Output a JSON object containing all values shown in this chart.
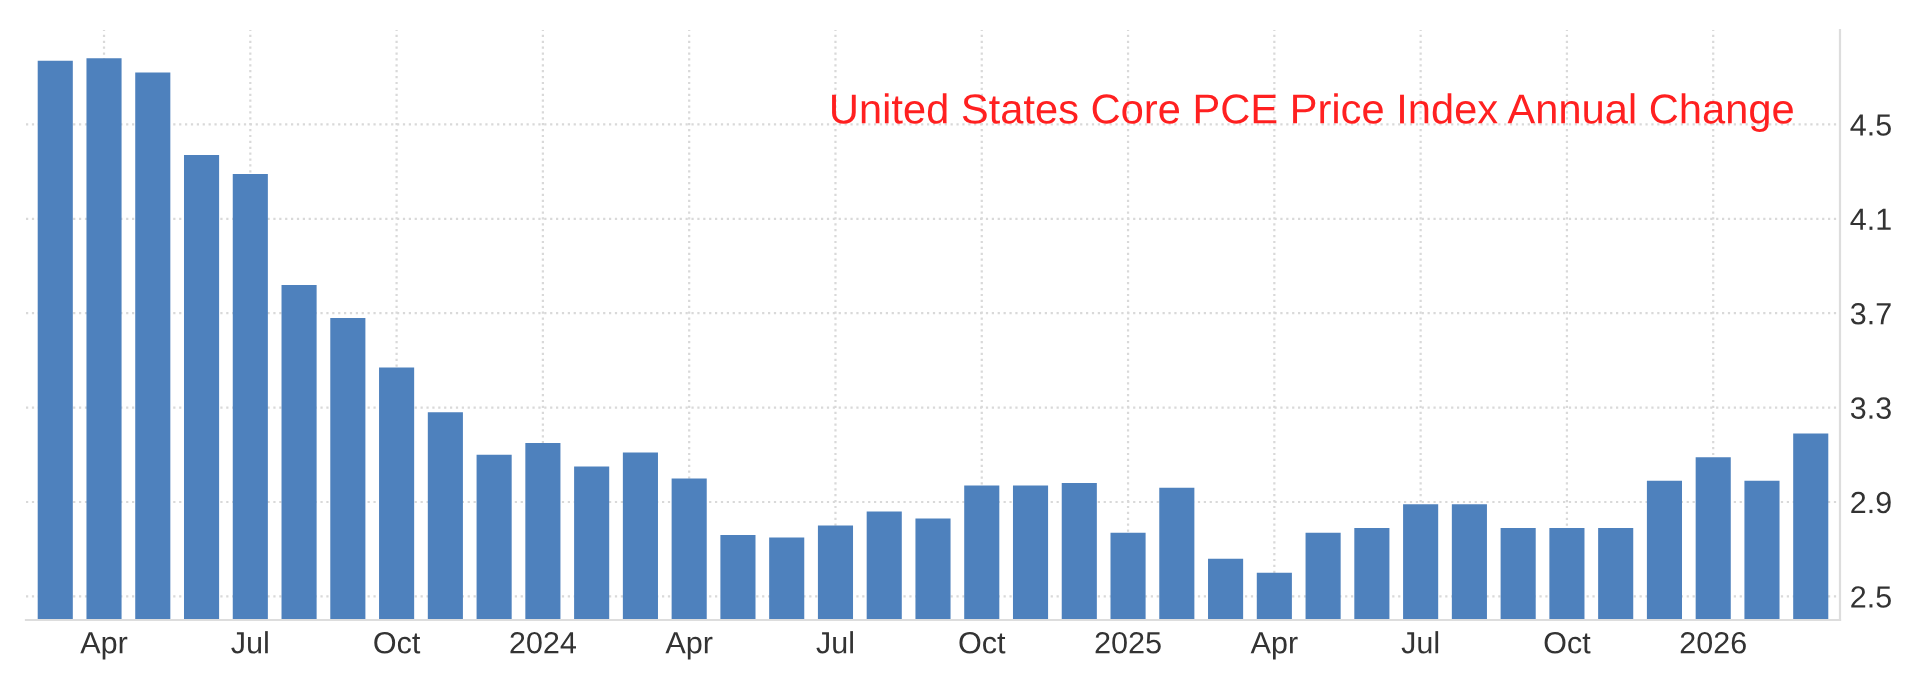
{
  "chart_data": {
    "type": "bar",
    "title": "United States Core PCE Price Index Annual Change",
    "categories": [
      null,
      "Apr",
      null,
      null,
      "Jul",
      null,
      null,
      "Oct",
      null,
      null,
      "2024",
      null,
      null,
      "Apr",
      null,
      null,
      "Jul",
      null,
      null,
      "Oct",
      null,
      null,
      "2025",
      null,
      null,
      "Apr",
      null,
      null,
      "Jul",
      null,
      null,
      "Oct",
      null,
      null,
      "2026",
      null,
      null
    ],
    "values": [
      4.77,
      4.78,
      4.72,
      4.37,
      4.29,
      3.82,
      3.68,
      3.47,
      3.28,
      3.1,
      3.15,
      3.05,
      3.11,
      3.0,
      2.76,
      2.75,
      2.8,
      2.86,
      2.83,
      2.97,
      2.97,
      2.98,
      2.77,
      2.96,
      2.66,
      2.6,
      2.77,
      2.79,
      2.89,
      2.89,
      2.79,
      2.79,
      2.79,
      2.99,
      3.09,
      2.99,
      3.19
    ],
    "color": "#4e81bd",
    "ylim": [
      2.4,
      4.9
    ],
    "yticks": [
      2.5,
      2.9,
      3.3,
      3.7,
      4.1,
      4.5
    ],
    "grid": true
  }
}
